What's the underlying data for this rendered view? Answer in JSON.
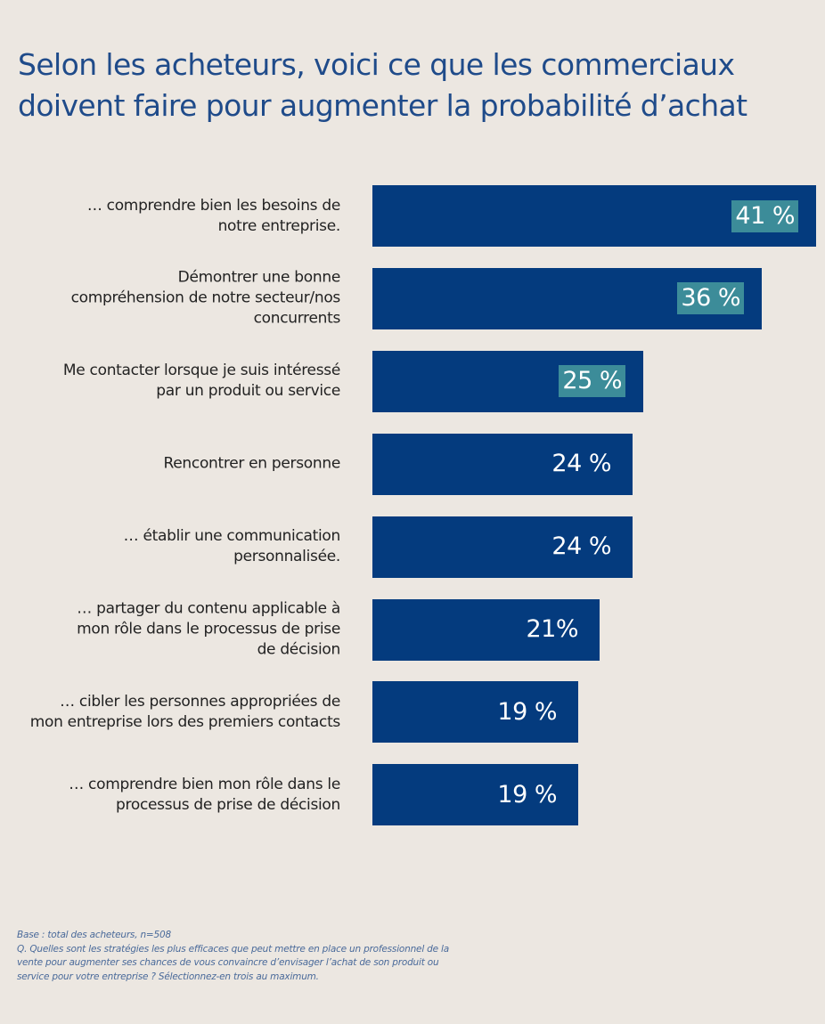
{
  "title": {
    "line1": "Selon les acheteurs, voici ce que les commerciaux",
    "line2": "doivent faire pour augmenter la probabilité d’achat"
  },
  "chart_data": {
    "type": "bar",
    "orientation": "horizontal",
    "xlim": [
      0,
      41
    ],
    "categories": [
      [
        "… comprendre bien les besoins de",
        "notre entreprise."
      ],
      [
        "Démontrer une bonne",
        "compréhension de notre secteur/nos",
        "concurrents"
      ],
      [
        "Me contacter lorsque je suis intéressé",
        "par un produit ou service"
      ],
      [
        "Rencontrer en personne"
      ],
      [
        "… établir une communication",
        "personnalisée."
      ],
      [
        "… partager du contenu applicable à",
        "mon rôle dans le processus de prise",
        "de décision"
      ],
      [
        "… cibler les personnes appropriées de",
        "mon entreprise lors des premiers contacts"
      ],
      [
        "… comprendre bien mon rôle dans le",
        "processus de prise de décision"
      ]
    ],
    "values": [
      41,
      36,
      25,
      24,
      24,
      21,
      19,
      19
    ],
    "data_labels": [
      "41 %",
      "36 %",
      "25 %",
      "24 %",
      "24 %",
      "21%",
      "19 %",
      "19 %"
    ],
    "highlighted": [
      true,
      true,
      true,
      false,
      false,
      false,
      false,
      false
    ],
    "colors": {
      "bar": "#043B7E",
      "highlight": "#3C8C99",
      "label_text": "#FFFFFF"
    },
    "grid": false,
    "legend": "none"
  },
  "footnote": {
    "lines": [
      "Base : total des acheteurs, n=508",
      "Q. Quelles sont les stratégies les plus efficaces que peut mettre en place un professionnel de la",
      "vente pour augmenter ses chances de vous convaincre d’envisager l’achat de son produit ou",
      "service pour votre entreprise ?  Sélectionnez-en trois au maximum."
    ]
  }
}
